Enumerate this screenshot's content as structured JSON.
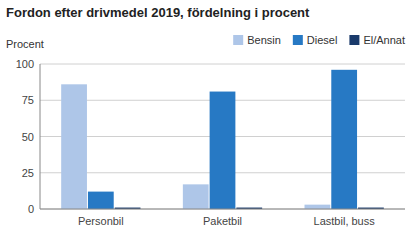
{
  "chart_data": {
    "type": "bar",
    "title": "Fordon efter drivmedel 2019, fördelning i procent",
    "ylabel": "Procent",
    "categories": [
      "Personbil",
      "Paketbil",
      "Lastbil, buss"
    ],
    "series": [
      {
        "name": "Bensin",
        "color": "#aec6e8",
        "values": [
          86,
          17,
          3
        ]
      },
      {
        "name": "Diesel",
        "color": "#2779c4",
        "values": [
          12,
          81,
          96
        ]
      },
      {
        "name": "El/Annat",
        "color": "#1a3a6b",
        "values": [
          1,
          1,
          1
        ]
      }
    ],
    "ylim": [
      0,
      100
    ],
    "yticks": [
      0,
      25,
      50,
      75,
      100
    ],
    "grid": true,
    "legend": "top-right"
  }
}
